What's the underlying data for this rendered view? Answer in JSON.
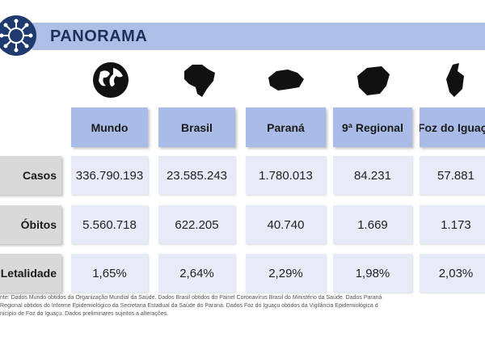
{
  "header": {
    "title": "PANORAMA"
  },
  "table": {
    "columns": [
      "Mundo",
      "Brasil",
      "Paraná",
      "9ª Regional",
      "Foz do Iguaçu"
    ],
    "rows": [
      {
        "label": "Casos",
        "values": [
          "336.790.193",
          "23.585.243",
          "1.780.013",
          "84.231",
          "57.881"
        ]
      },
      {
        "label": "Óbitos",
        "values": [
          "5.560.718",
          "622.205",
          "40.740",
          "1.669",
          "1.173"
        ]
      },
      {
        "label": "Letalidade",
        "values": [
          "1,65%",
          "2,64%",
          "2,29%",
          "1,98%",
          "2,03%"
        ]
      }
    ]
  },
  "footnote": [
    "nte: Dados Mundo obtidos da Organização Mundial da Saúde. Dados Brasil obtidos do Painel Coronavírus Brasil do Ministério da Saúde. Dados Paraná",
    "Regional obtidos do Informe Epidemiológico da Secretaria Estadual da Saúde do Paraná.  Dados Foz do Iguaçu obtidos da Vigilância Epidemiológica d",
    "nicípio de Foz do Iguaçu.  Dados preliminares sujeitos a alterações."
  ]
}
